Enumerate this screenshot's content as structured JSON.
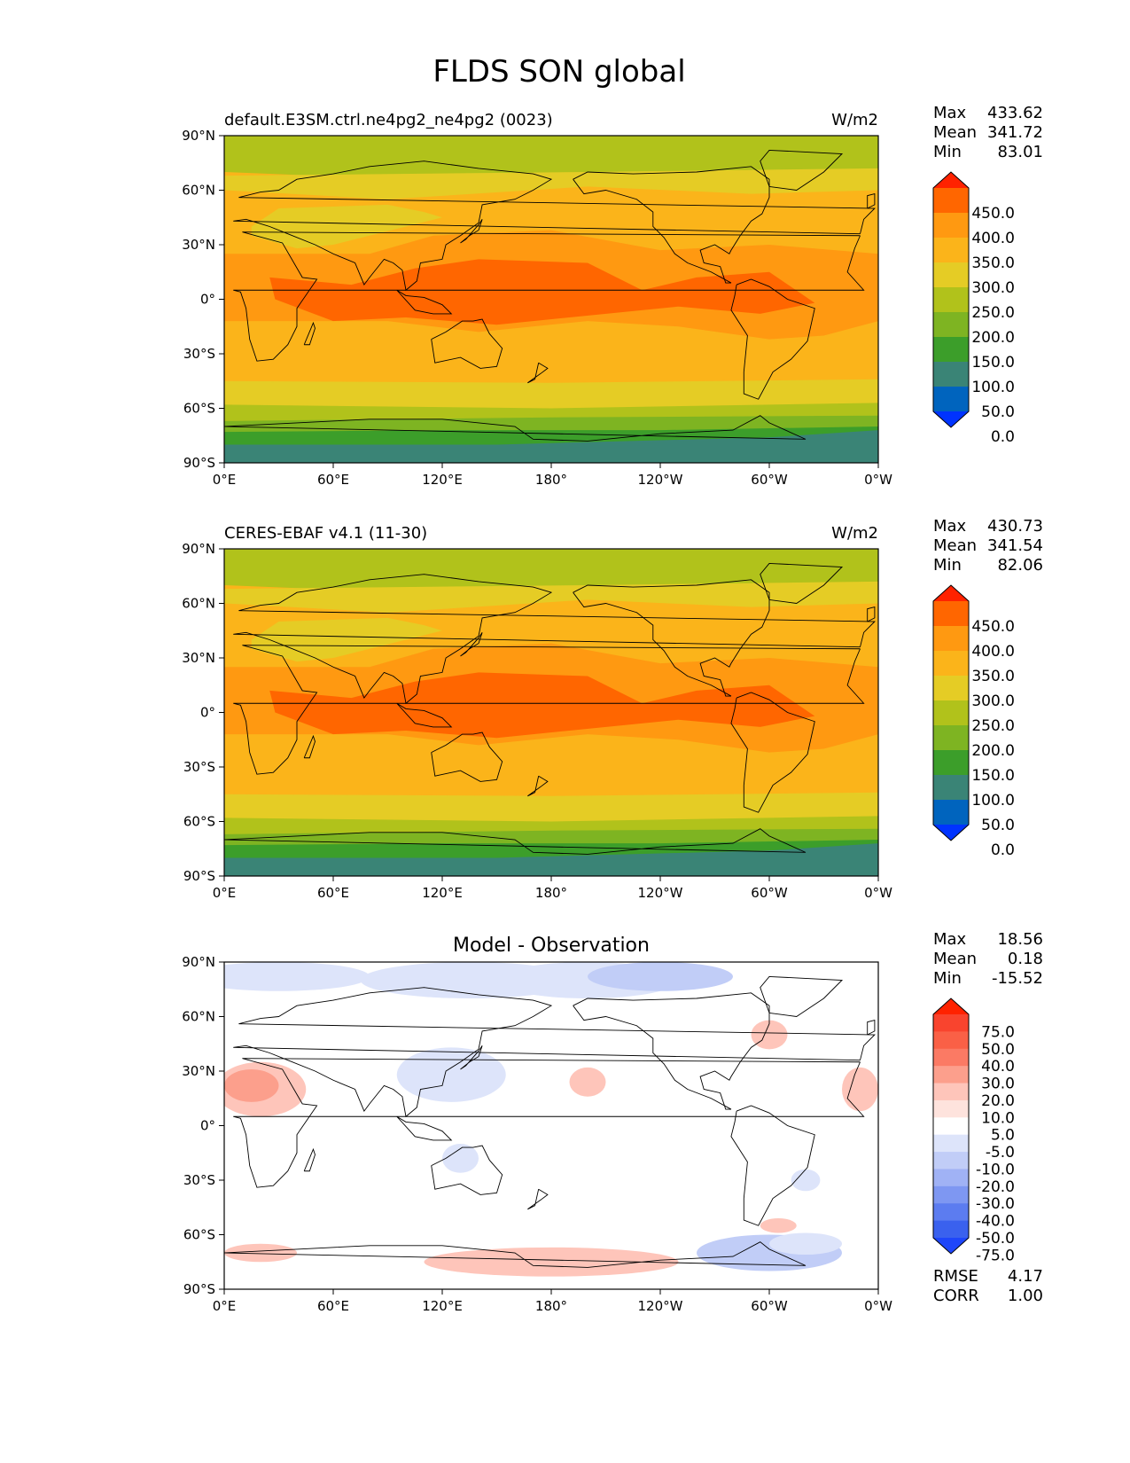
{
  "figure_title": "FLDS SON global",
  "chart_data": [
    {
      "type": "heatmap",
      "title": "default.E3SM.ctrl.ne4pg2_ne4pg2 (0023)",
      "units": "W/m2",
      "stats": [
        {
          "label": "Max",
          "value": "433.62"
        },
        {
          "label": "Mean",
          "value": "341.72"
        },
        {
          "label": "Min",
          "value": "83.01"
        }
      ],
      "xticks": [
        "0°E",
        "60°E",
        "120°E",
        "180°",
        "120°W",
        "60°W",
        "0°W"
      ],
      "yticks": [
        "90°N",
        "60°N",
        "30°N",
        "0°",
        "30°S",
        "60°S",
        "90°S"
      ],
      "xlim": [
        0,
        360
      ],
      "ylim": [
        -90,
        90
      ],
      "colorbar": {
        "labels": [
          "450.0",
          "400.0",
          "350.0",
          "300.0",
          "250.0",
          "200.0",
          "150.0",
          "100.0",
          "50.0",
          "0.0"
        ],
        "colors": [
          "#FF2200",
          "#FF6600",
          "#FF9911",
          "#FBB41A",
          "#E5CC25",
          "#B1C21B",
          "#7EB422",
          "#3C9E2A",
          "#3A8476",
          "#0064BE",
          "#0033FF"
        ]
      }
    },
    {
      "type": "heatmap",
      "title": "CERES-EBAF v4.1 (11-30)",
      "units": "W/m2",
      "stats": [
        {
          "label": "Max",
          "value": "430.73"
        },
        {
          "label": "Mean",
          "value": "341.54"
        },
        {
          "label": "Min",
          "value": "82.06"
        }
      ],
      "xticks": [
        "0°E",
        "60°E",
        "120°E",
        "180°",
        "120°W",
        "60°W",
        "0°W"
      ],
      "yticks": [
        "90°N",
        "60°N",
        "30°N",
        "0°",
        "30°S",
        "60°S",
        "90°S"
      ],
      "xlim": [
        0,
        360
      ],
      "ylim": [
        -90,
        90
      ],
      "colorbar": {
        "labels": [
          "450.0",
          "400.0",
          "350.0",
          "300.0",
          "250.0",
          "200.0",
          "150.0",
          "100.0",
          "50.0",
          "0.0"
        ],
        "colors": [
          "#FF2200",
          "#FF6600",
          "#FF9911",
          "#FBB41A",
          "#E5CC25",
          "#B1C21B",
          "#7EB422",
          "#3C9E2A",
          "#3A8476",
          "#0064BE",
          "#0033FF"
        ]
      }
    },
    {
      "type": "heatmap",
      "title": "Model - Observation",
      "units": "",
      "stats": [
        {
          "label": "Max",
          "value": "18.56"
        },
        {
          "label": "Mean",
          "value": "0.18"
        },
        {
          "label": "Min",
          "value": "-15.52"
        }
      ],
      "metrics": [
        {
          "label": "RMSE",
          "value": "4.17"
        },
        {
          "label": "CORR",
          "value": "1.00"
        }
      ],
      "xticks": [
        "0°E",
        "60°E",
        "120°E",
        "180°",
        "120°W",
        "60°W",
        "0°W"
      ],
      "yticks": [
        "90°N",
        "60°N",
        "30°N",
        "0°",
        "30°S",
        "60°S",
        "90°S"
      ],
      "xlim": [
        0,
        360
      ],
      "ylim": [
        -90,
        90
      ],
      "colorbar": {
        "labels": [
          "75.0",
          "50.0",
          "40.0",
          "30.0",
          "20.0",
          "10.0",
          "5.0",
          "-5.0",
          "-10.0",
          "-20.0",
          "-30.0",
          "-40.0",
          "-50.0",
          "-75.0"
        ],
        "colors": [
          "#FF2200",
          "#F9442E",
          "#FA6046",
          "#FB7A64",
          "#FC9F8C",
          "#FEC5BA",
          "#FEE3DD",
          "#FFFFFF",
          "#DDE4FA",
          "#C1CDF7",
          "#A0B2F5",
          "#7E97F2",
          "#5C7CF0",
          "#3A61EE",
          "#1E46FA"
        ]
      }
    }
  ]
}
